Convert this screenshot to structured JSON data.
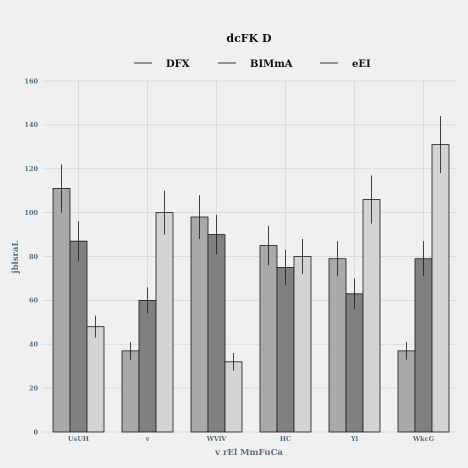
{
  "chart_data": {
    "type": "bar",
    "title": "dcFK D",
    "xlabel": "v rEl MmFuCa",
    "ylabel": "jblsraL",
    "categories": [
      "UsUH",
      "v",
      "WVlV",
      "HC",
      "Yl",
      "WkcG"
    ],
    "ylim": [
      0,
      160
    ],
    "yticks": [
      0,
      20,
      40,
      60,
      80,
      100,
      120,
      140,
      160
    ],
    "grid": true,
    "legend_position": "top",
    "series": [
      {
        "name": "DFX",
        "color": "#a9a9a9",
        "values": [
          111,
          37,
          98,
          85,
          79,
          37
        ],
        "errors": [
          11,
          4,
          10,
          9,
          8,
          4
        ]
      },
      {
        "name": "BIMmA",
        "color": "#808080",
        "values": [
          87,
          60,
          90,
          75,
          63,
          79
        ],
        "errors": [
          9,
          6,
          9,
          8,
          7,
          8
        ]
      },
      {
        "name": "eEI",
        "color": "#d3d3d3",
        "values": [
          48,
          100,
          32,
          80,
          106,
          131
        ],
        "errors": [
          5,
          10,
          4,
          8,
          11,
          13
        ]
      }
    ]
  }
}
